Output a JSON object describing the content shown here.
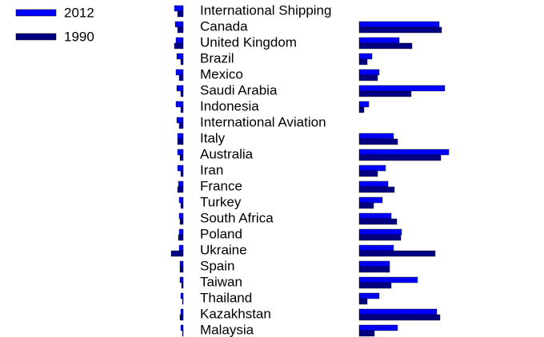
{
  "chart_data": [
    {
      "type": "bar",
      "orientation": "horizontal",
      "direction": "left",
      "categories": [
        "International Shipping",
        "Canada",
        "United Kingdom",
        "Brazil",
        "Mexico",
        "Saudi Arabia",
        "Indonesia",
        "International Aviation",
        "Italy",
        "Australia",
        "Iran",
        "France",
        "Turkey",
        "South Africa",
        "Poland",
        "Ukraine",
        "Spain",
        "Taiwan",
        "Thailand",
        "Kazakhstan",
        "Malaysia"
      ],
      "series": [
        {
          "name": "2012",
          "color": "#0000ff",
          "values": [
            11,
            10,
            9,
            8,
            9,
            8,
            9,
            8,
            7,
            7,
            7,
            6,
            5,
            5,
            5,
            5,
            4,
            4,
            3,
            3,
            3
          ]
        },
        {
          "name": "1990",
          "color": "#000080",
          "values": [
            7,
            7,
            11,
            3,
            5,
            3,
            3,
            5,
            7,
            4,
            3,
            7,
            3,
            4,
            6,
            15,
            4,
            2,
            1,
            4,
            1
          ]
        }
      ]
    },
    {
      "type": "bar",
      "orientation": "horizontal",
      "direction": "right",
      "series": [
        {
          "color": "#0000ff",
          "values": [
            null,
            100,
            50,
            16,
            25,
            107,
            12,
            null,
            43,
            112,
            33,
            36,
            29,
            40,
            53,
            43,
            38,
            73,
            25,
            97,
            48
          ]
        },
        {
          "color": "#000080",
          "values": [
            null,
            103,
            66,
            10,
            23,
            65,
            6,
            null,
            48,
            102,
            23,
            44,
            18,
            47,
            52,
            95,
            38,
            40,
            10,
            101,
            19
          ]
        }
      ]
    }
  ]
}
